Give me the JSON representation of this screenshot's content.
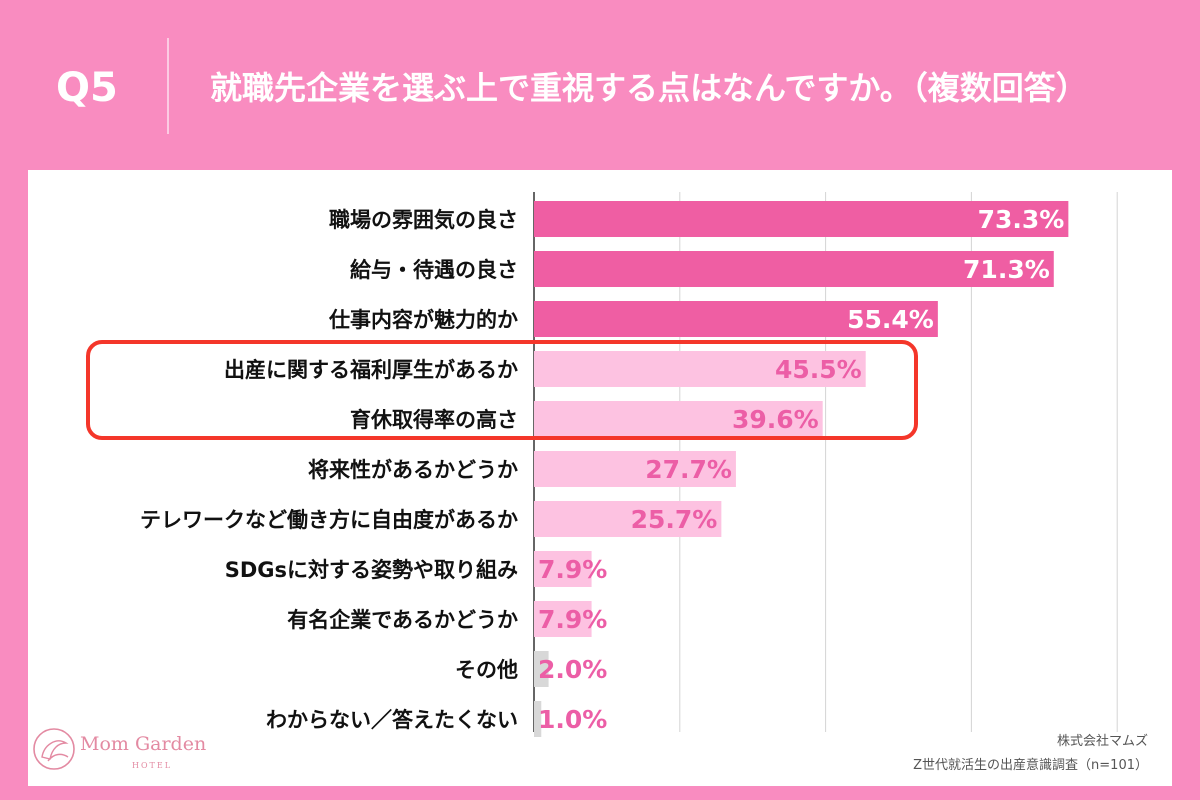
{
  "header": {
    "q_label": "Q5",
    "title": "就職先企業を選ぶ上で重視する点はなんですか。（複数回答）"
  },
  "footer": {
    "logo_name": "Mom Garden",
    "logo_sub": "HOTEL",
    "company": "株式会社マムズ",
    "survey": "Z世代就活生の出産意識調査（n=101）"
  },
  "colors": {
    "background": "#f98cc0",
    "bar_strong": "#ef5ea3",
    "bar_light": "#fdc2e1",
    "bar_gray": "#d8d8d8",
    "label_strong": "#ffffff",
    "label_light": "#ec5ea6",
    "highlight": "#f4362a"
  },
  "chart_data": {
    "type": "bar",
    "orientation": "horizontal",
    "categories": [
      "職場の雰囲気の良さ",
      "給与・待遇の良さ",
      "仕事内容が魅力的か",
      "出産に関する福利厚生があるか",
      "育休取得率の高さ",
      "将来性があるかどうか",
      "テレワークなど働き方に自由度があるか",
      "SDGsに対する姿勢や取り組み",
      "有名企業であるかどうか",
      "その他",
      "わからない／答えたくない"
    ],
    "values": [
      73.3,
      71.3,
      55.4,
      45.5,
      39.6,
      27.7,
      25.7,
      7.9,
      7.9,
      2.0,
      1.0
    ],
    "value_labels": [
      "73.3%",
      "71.3%",
      "55.4%",
      "45.5%",
      "39.6%",
      "27.7%",
      "25.7%",
      "7.9%",
      "7.9%",
      "2.0%",
      "1.0%"
    ],
    "bar_style": [
      "strong",
      "strong",
      "strong",
      "light",
      "light",
      "light",
      "light",
      "light",
      "light",
      "gray",
      "gray"
    ],
    "highlighted": [
      "出産に関する福利厚生があるか",
      "育休取得率の高さ"
    ],
    "xlim": [
      0,
      100
    ],
    "grid": true,
    "legend": "none"
  }
}
